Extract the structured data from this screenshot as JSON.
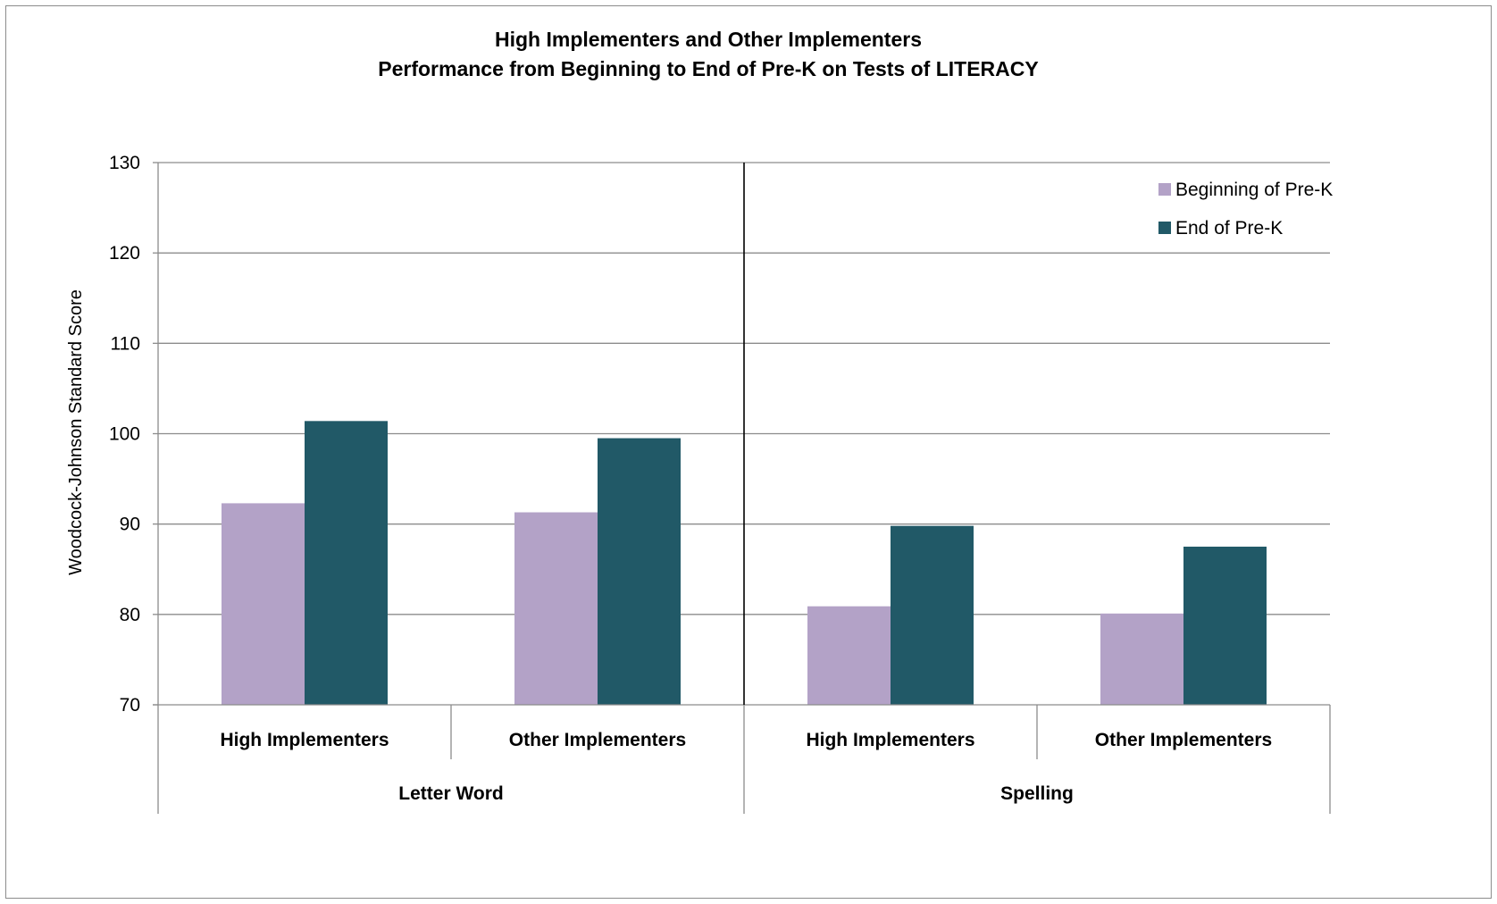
{
  "chart_data": {
    "type": "bar",
    "title_line1": "High Implementers and Other Implementers",
    "title_line2": "Performance from Beginning to End of Pre-K on Tests of LITERACY",
    "ylabel": "Woodcock-Johnson Standard Score",
    "xlabel": "",
    "ylim": [
      70,
      130
    ],
    "y_ticks": [
      70,
      80,
      90,
      100,
      110,
      120,
      130
    ],
    "grid": true,
    "legend_position": "top-right",
    "groups": [
      {
        "label": "Letter Word",
        "categories": [
          "High Implementers",
          "Other Implementers"
        ]
      },
      {
        "label": "Spelling",
        "categories": [
          "High Implementers",
          "Other Implementers"
        ]
      }
    ],
    "categories": [
      "High Implementers",
      "Other Implementers",
      "High Implementers",
      "Other Implementers"
    ],
    "series": [
      {
        "name": "Beginning of Pre-K",
        "color": "#b3a2c7",
        "values": [
          92.3,
          91.3,
          80.9,
          80.1
        ]
      },
      {
        "name": "End of Pre-K",
        "color": "#215967",
        "values": [
          101.4,
          99.5,
          89.8,
          87.5
        ]
      }
    ]
  }
}
